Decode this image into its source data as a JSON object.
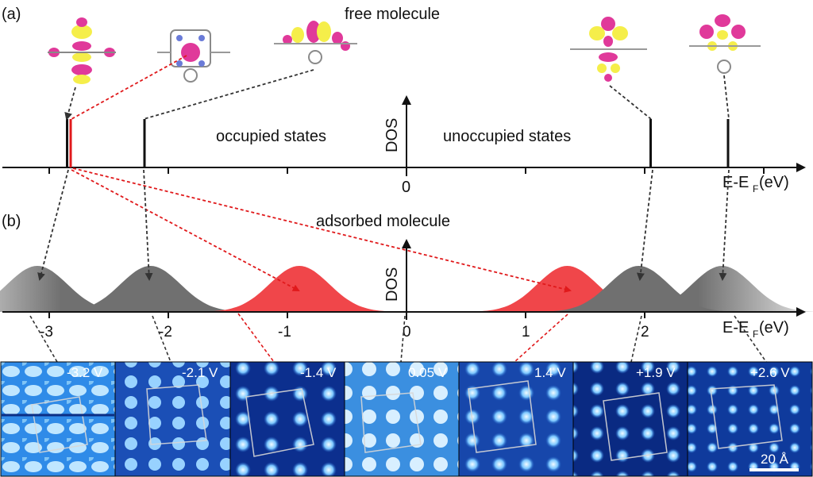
{
  "panel_a": {
    "tag": "(a)",
    "title": "free molecule",
    "occupied_label": "occupied states",
    "unoccupied_label": "unoccupied states",
    "y_label": "DOS",
    "zero_label": "0",
    "x_label_main": "E-E",
    "x_label_sub": "F",
    "x_label_unit": "(eV)"
  },
  "panel_b": {
    "tag": "(b)",
    "title": "adsorbed  molecule",
    "y_label": "DOS",
    "x_label_main": "E-E",
    "x_label_sub": "F",
    "x_label_unit": "(eV)",
    "ticks": [
      "-3",
      "-2",
      "-1",
      "0",
      "1",
      "2"
    ]
  },
  "stm_images": {
    "bias_labels": [
      "-3.2 V",
      "-2.1 V",
      "-1.4 V",
      "0.05 V",
      "1.4 V",
      "+1.9 V",
      "+2.6 V"
    ],
    "scale_bar": "20 Å"
  },
  "colors": {
    "axis": "#111111",
    "state_black": "#111111",
    "state_red": "#e0191b",
    "peak_gray": "#707070",
    "peak_red": "#f0464a",
    "orbital_pink": "#e0399a",
    "orbital_yellow": "#f5ee4a",
    "stm_dark": "#0b2f86",
    "stm_light": "#cfe9ff"
  },
  "chart_data": {
    "type": "diagram",
    "free_molecule_levels_eV": [
      -2.85,
      -2.82,
      -2.2,
      2.05,
      2.7
    ],
    "free_molecule_level_colors": [
      "black",
      "red",
      "black",
      "black",
      "black"
    ],
    "adsorbed_peaks": [
      {
        "center_eV": -3.1,
        "color": "gray"
      },
      {
        "center_eV": -2.15,
        "color": "gray"
      },
      {
        "center_eV": -0.9,
        "color": "red"
      },
      {
        "center_eV": 1.35,
        "color": "red"
      },
      {
        "center_eV": 1.95,
        "color": "gray"
      },
      {
        "center_eV": 2.65,
        "color": "gray"
      }
    ],
    "stm_bias_V": [
      -3.2,
      -2.1,
      -1.4,
      0.05,
      1.4,
      1.9,
      2.6
    ]
  }
}
